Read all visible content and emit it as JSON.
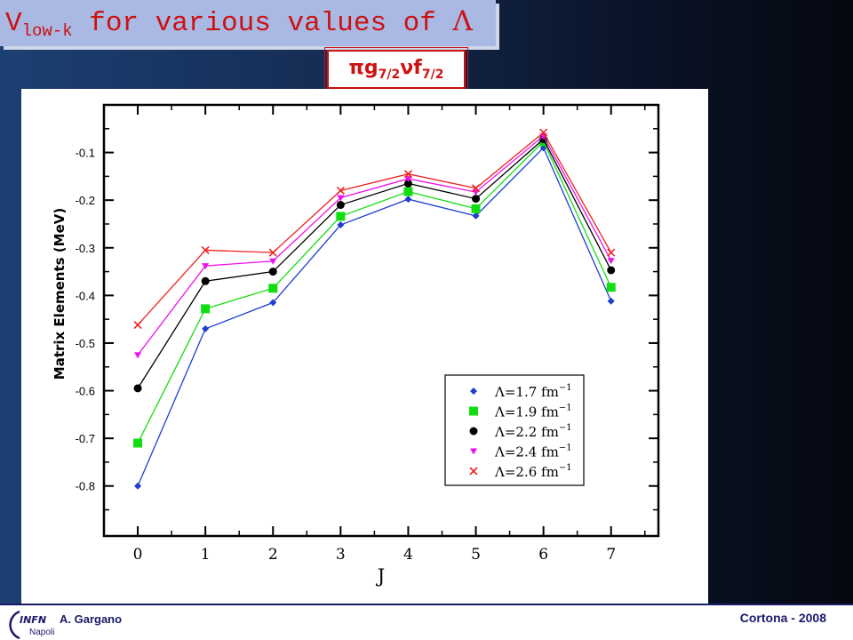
{
  "slide": {
    "title_main": "V",
    "title_sub": "low-k",
    "title_rest": " for various values of ",
    "title_symbol": "Λ",
    "orbital_pi": "π",
    "orbital_g": "g",
    "orbital_g_sub": "7/2",
    "orbital_nu": "ν",
    "orbital_f": "f",
    "orbital_f_sub": "7/2",
    "author": "A. Gargano",
    "event": "Cortona - 2008",
    "logo_text": "INFN",
    "logo_sub": "Napoli"
  },
  "chart_data": {
    "type": "line",
    "xlabel": "J",
    "ylabel": "Matrix Elements (MeV)",
    "x": [
      0,
      1,
      2,
      3,
      4,
      5,
      6,
      7
    ],
    "xticks": [
      "0",
      "1",
      "2",
      "3",
      "4",
      "5",
      "6",
      "7"
    ],
    "yticks": [
      "-0.1",
      "-0.2",
      "-0.3",
      "-0.4",
      "-0.5",
      "-0.6",
      "-0.7",
      "-0.8"
    ],
    "xlim": [
      -0.5,
      7.7
    ],
    "ylim": [
      -0.905,
      0.0
    ],
    "grid": false,
    "legend_position": "bottom-right",
    "series": [
      {
        "name": "Λ=1.7 fm",
        "exp": "−1",
        "color": "#1f3fd1",
        "marker": "diamond",
        "values": [
          -0.8,
          -0.47,
          -0.415,
          -0.252,
          -0.198,
          -0.233,
          -0.09,
          -0.412
        ]
      },
      {
        "name": "Λ=1.9 fm",
        "exp": "−1",
        "color": "#11dd11",
        "marker": "square",
        "values": [
          -0.71,
          -0.428,
          -0.385,
          -0.234,
          -0.182,
          -0.218,
          -0.077,
          -0.383
        ]
      },
      {
        "name": "Λ=2.2 fm",
        "exp": "−1",
        "color": "#000000",
        "marker": "circle",
        "values": [
          -0.595,
          -0.37,
          -0.35,
          -0.21,
          -0.165,
          -0.197,
          -0.072,
          -0.347
        ]
      },
      {
        "name": "Λ=2.4 fm",
        "exp": "−1",
        "color": "#ee11ee",
        "marker": "triangle-down",
        "values": [
          -0.525,
          -0.338,
          -0.328,
          -0.195,
          -0.155,
          -0.183,
          -0.065,
          -0.327
        ]
      },
      {
        "name": "Λ=2.6 fm",
        "exp": "−1",
        "color": "#ee2222",
        "marker": "cross",
        "values": [
          -0.462,
          -0.305,
          -0.31,
          -0.18,
          -0.145,
          -0.175,
          -0.058,
          -0.31
        ]
      }
    ]
  }
}
